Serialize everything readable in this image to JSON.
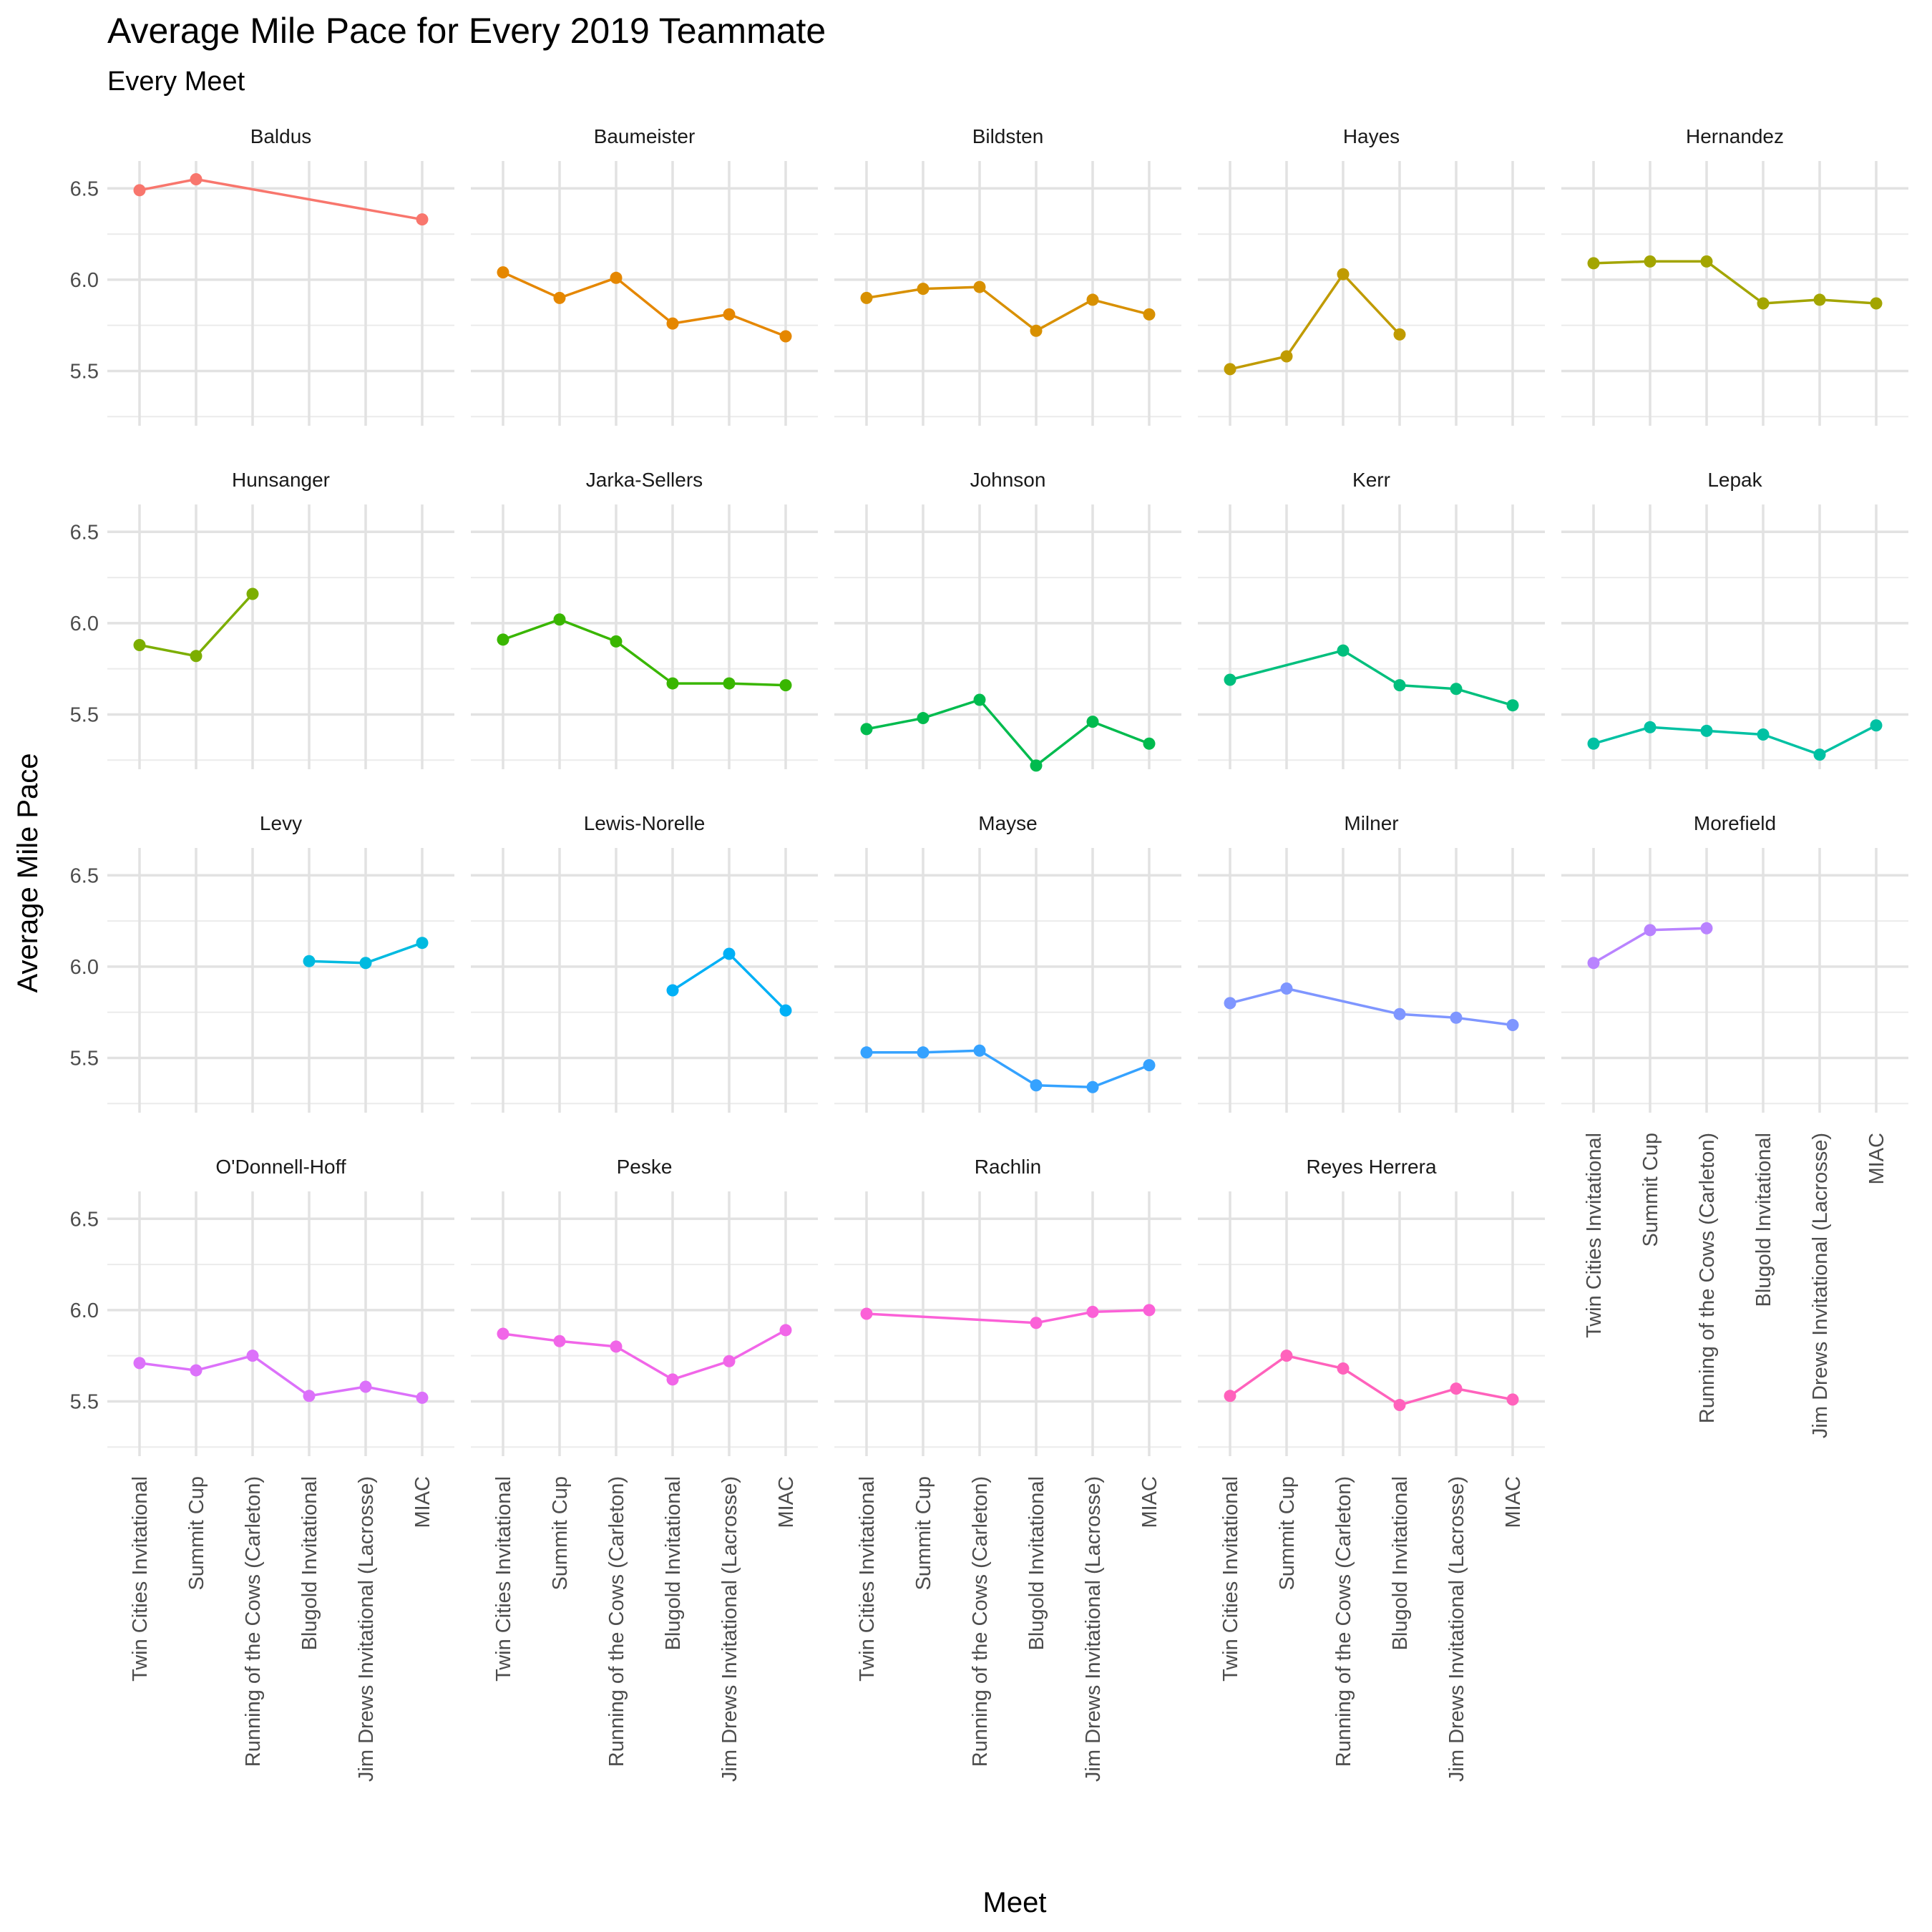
{
  "chart_data": {
    "type": "line",
    "title": "Average Mile Pace for Every 2019 Teammate",
    "subtitle": "Every Meet",
    "xlabel": "Meet",
    "ylabel": "Average Mile Pace",
    "categories": [
      "Twin Cities Invitational",
      "Summit Cup",
      "Running of the Cows (Carleton)",
      "Blugold Invitational",
      "Jim Drews Invitational (Lacrosse)",
      "MIAC"
    ],
    "ylim": [
      5.2,
      6.65
    ],
    "yticks": [
      "5.5",
      "6.0",
      "6.5"
    ],
    "grid": true,
    "legend": "none",
    "series": [
      {
        "name": "Baldus",
        "color": "#F8766D",
        "values": [
          6.49,
          6.55,
          null,
          null,
          null,
          6.33
        ]
      },
      {
        "name": "Baumeister",
        "color": "#E58700",
        "values": [
          6.04,
          5.9,
          6.01,
          5.76,
          5.81,
          5.69
        ]
      },
      {
        "name": "Bildsten",
        "color": "#D89000",
        "values": [
          5.9,
          5.95,
          5.96,
          5.72,
          5.89,
          5.81
        ]
      },
      {
        "name": "Hayes",
        "color": "#C09B00",
        "values": [
          5.51,
          5.58,
          6.03,
          5.7,
          null,
          null
        ]
      },
      {
        "name": "Hernandez",
        "color": "#A3A500",
        "values": [
          6.09,
          6.1,
          6.1,
          5.87,
          5.89,
          5.87
        ]
      },
      {
        "name": "Hunsanger",
        "color": "#7CAE00",
        "values": [
          5.88,
          5.82,
          6.16,
          null,
          null,
          null
        ]
      },
      {
        "name": "Jarka-Sellers",
        "color": "#39B600",
        "values": [
          5.91,
          6.02,
          5.9,
          5.67,
          5.67,
          5.66
        ]
      },
      {
        "name": "Johnson",
        "color": "#00BB4E",
        "values": [
          5.42,
          5.48,
          5.58,
          5.22,
          5.46,
          5.34
        ]
      },
      {
        "name": "Kerr",
        "color": "#00BF7D",
        "values": [
          5.69,
          null,
          5.85,
          5.66,
          5.64,
          5.55
        ]
      },
      {
        "name": "Lepak",
        "color": "#00C1A3",
        "values": [
          5.34,
          5.43,
          5.41,
          5.39,
          5.28,
          5.44
        ]
      },
      {
        "name": "Levy",
        "color": "#00BAE0",
        "values": [
          null,
          null,
          null,
          6.03,
          6.02,
          6.13
        ]
      },
      {
        "name": "Lewis-Norelle",
        "color": "#00B0F6",
        "values": [
          null,
          null,
          null,
          5.87,
          6.07,
          5.76
        ]
      },
      {
        "name": "Mayse",
        "color": "#35A2FF",
        "values": [
          5.53,
          5.53,
          5.54,
          5.35,
          5.34,
          5.46
        ]
      },
      {
        "name": "Milner",
        "color": "#7F96FF",
        "values": [
          5.8,
          5.88,
          null,
          5.74,
          5.72,
          5.68
        ]
      },
      {
        "name": "Morefield",
        "color": "#B983FF",
        "values": [
          6.02,
          6.2,
          6.21,
          null,
          null,
          null
        ]
      },
      {
        "name": "O'Donnell-Hoff",
        "color": "#DC71FA",
        "values": [
          5.71,
          5.67,
          5.75,
          5.53,
          5.58,
          5.52
        ]
      },
      {
        "name": "Peske",
        "color": "#F166E8",
        "values": [
          5.87,
          5.83,
          5.8,
          5.62,
          5.72,
          5.89
        ]
      },
      {
        "name": "Rachlin",
        "color": "#FB61D7",
        "values": [
          5.98,
          null,
          null,
          5.93,
          5.99,
          6.0
        ]
      },
      {
        "name": "Reyes Herrera",
        "color": "#FF62BC",
        "values": [
          5.53,
          5.75,
          5.68,
          5.48,
          5.57,
          5.51
        ]
      }
    ]
  }
}
